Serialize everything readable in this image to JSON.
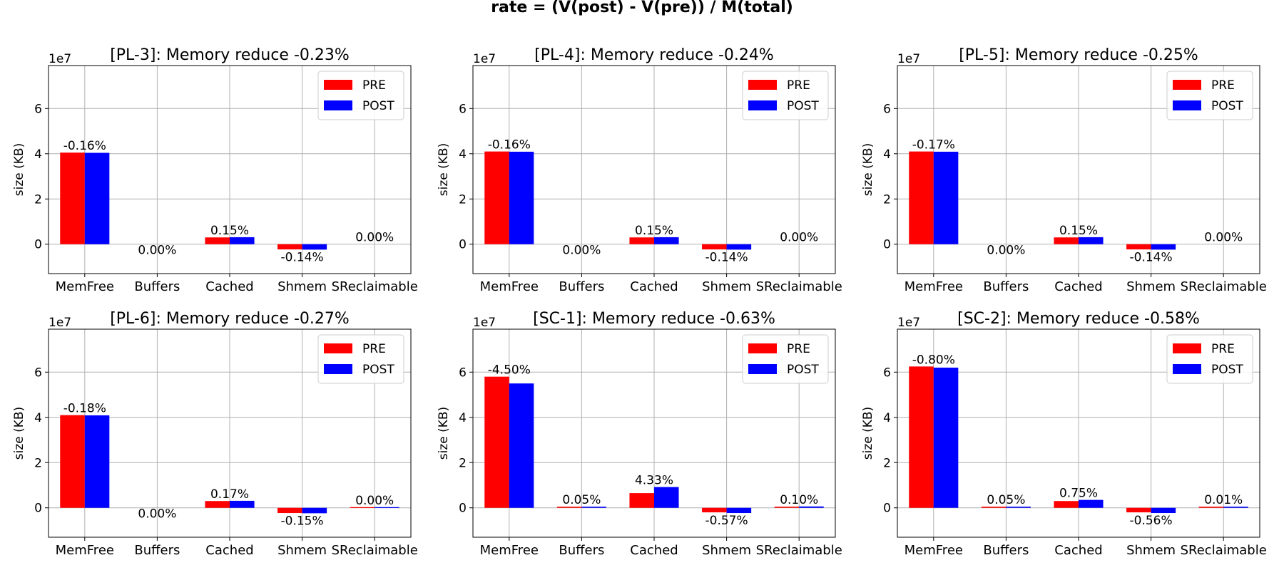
{
  "suptitle": "rate = (V(post) - V(pre)) / M(total)",
  "colors": {
    "pre": "#ff0000",
    "post": "#0000ff",
    "grid": "#b0b0b0"
  },
  "chart_data": [
    {
      "type": "bar",
      "title": "[PL-3]: Memory reduce -0.23%",
      "ylabel": "size (KB)",
      "yscale_label": "1e7",
      "ylim": [
        -1.3,
        7.9
      ],
      "yticks": [
        0,
        2,
        4,
        6
      ],
      "grid": true,
      "legend": "top-right",
      "categories": [
        "MemFree",
        "Buffers",
        "Cached",
        "Shmem",
        "SReclaimable"
      ],
      "series": [
        {
          "name": "PRE",
          "values": [
            4.05,
            0.0,
            0.3,
            -0.23,
            0.0
          ]
        },
        {
          "name": "POST",
          "values": [
            4.04,
            0.0,
            0.31,
            -0.24,
            0.0
          ]
        }
      ],
      "annotations": [
        "-0.16%",
        "0.00%",
        "0.15%",
        "-0.14%",
        "0.00%"
      ]
    },
    {
      "type": "bar",
      "title": "[PL-4]: Memory reduce -0.24%",
      "ylabel": "size (KB)",
      "yscale_label": "1e7",
      "ylim": [
        -1.3,
        7.9
      ],
      "yticks": [
        0,
        2,
        4,
        6
      ],
      "grid": true,
      "legend": "top-right",
      "categories": [
        "MemFree",
        "Buffers",
        "Cached",
        "Shmem",
        "SReclaimable"
      ],
      "series": [
        {
          "name": "PRE",
          "values": [
            4.1,
            0.0,
            0.3,
            -0.23,
            0.0
          ]
        },
        {
          "name": "POST",
          "values": [
            4.09,
            0.0,
            0.31,
            -0.24,
            0.0
          ]
        }
      ],
      "annotations": [
        "-0.16%",
        "0.00%",
        "0.15%",
        "-0.14%",
        "0.00%"
      ]
    },
    {
      "type": "bar",
      "title": "[PL-5]: Memory reduce -0.25%",
      "ylabel": "size (KB)",
      "yscale_label": "1e7",
      "ylim": [
        -1.3,
        7.9
      ],
      "yticks": [
        0,
        2,
        4,
        6
      ],
      "grid": true,
      "legend": "top-right",
      "categories": [
        "MemFree",
        "Buffers",
        "Cached",
        "Shmem",
        "SReclaimable"
      ],
      "series": [
        {
          "name": "PRE",
          "values": [
            4.1,
            0.0,
            0.3,
            -0.23,
            0.0
          ]
        },
        {
          "name": "POST",
          "values": [
            4.09,
            0.0,
            0.31,
            -0.24,
            0.0
          ]
        }
      ],
      "annotations": [
        "-0.17%",
        "0.00%",
        "0.15%",
        "-0.14%",
        "0.00%"
      ]
    },
    {
      "type": "bar",
      "title": "[PL-6]: Memory reduce -0.27%",
      "ylabel": "size (KB)",
      "yscale_label": "1e7",
      "ylim": [
        -1.3,
        7.9
      ],
      "yticks": [
        0,
        2,
        4,
        6
      ],
      "grid": true,
      "legend": "top-right",
      "categories": [
        "MemFree",
        "Buffers",
        "Cached",
        "Shmem",
        "SReclaimable"
      ],
      "series": [
        {
          "name": "PRE",
          "values": [
            4.1,
            0.0,
            0.3,
            -0.23,
            0.03
          ]
        },
        {
          "name": "POST",
          "values": [
            4.09,
            0.0,
            0.31,
            -0.24,
            0.03
          ]
        }
      ],
      "annotations": [
        "-0.18%",
        "0.00%",
        "0.17%",
        "-0.15%",
        "0.00%"
      ]
    },
    {
      "type": "bar",
      "title": "[SC-1]: Memory reduce -0.63%",
      "ylabel": "size (KB)",
      "yscale_label": "1e7",
      "ylim": [
        -1.3,
        7.9
      ],
      "yticks": [
        0,
        2,
        4,
        6
      ],
      "grid": true,
      "legend": "top-right",
      "categories": [
        "MemFree",
        "Buffers",
        "Cached",
        "Shmem",
        "SReclaimable"
      ],
      "series": [
        {
          "name": "PRE",
          "values": [
            5.8,
            0.05,
            0.65,
            -0.2,
            0.05
          ]
        },
        {
          "name": "POST",
          "values": [
            5.5,
            0.05,
            0.92,
            -0.23,
            0.06
          ]
        }
      ],
      "annotations": [
        "-4.50%",
        "0.05%",
        "4.33%",
        "-0.57%",
        "0.10%"
      ]
    },
    {
      "type": "bar",
      "title": "[SC-2]: Memory reduce -0.58%",
      "ylabel": "size (KB)",
      "yscale_label": "1e7",
      "ylim": [
        -1.3,
        7.9
      ],
      "yticks": [
        0,
        2,
        4,
        6
      ],
      "grid": true,
      "legend": "top-right",
      "categories": [
        "MemFree",
        "Buffers",
        "Cached",
        "Shmem",
        "SReclaimable"
      ],
      "series": [
        {
          "name": "PRE",
          "values": [
            6.25,
            0.05,
            0.3,
            -0.2,
            0.05
          ]
        },
        {
          "name": "POST",
          "values": [
            6.2,
            0.05,
            0.35,
            -0.23,
            0.05
          ]
        }
      ],
      "annotations": [
        "-0.80%",
        "0.05%",
        "0.75%",
        "-0.56%",
        "0.01%"
      ]
    }
  ]
}
